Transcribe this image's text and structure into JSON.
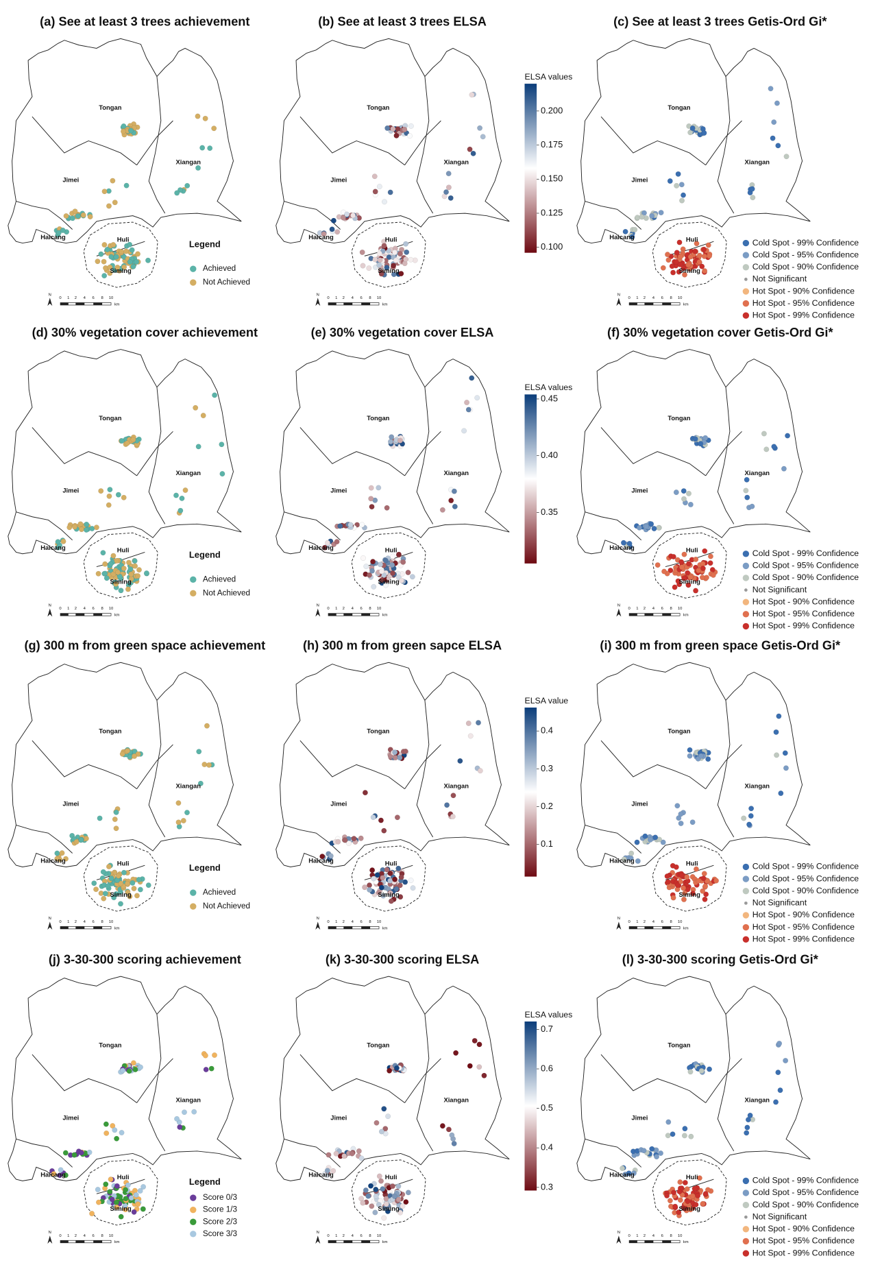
{
  "district_labels": [
    "Tongan",
    "Jimei",
    "Xiangan",
    "Haicang",
    "Huli",
    "Siming"
  ],
  "scale_bar": {
    "ticks": [
      0,
      1,
      2,
      4,
      6,
      8,
      10
    ],
    "unit": "km",
    "north": "N"
  },
  "panels": [
    {
      "title": "(a) See at least 3 trees achievement",
      "legend": {
        "title": "Legend",
        "items": [
          {
            "label": "Achieved",
            "color": "#5bb3a8"
          },
          {
            "label": "Not Achieved",
            "color": "#d4ae63"
          }
        ]
      }
    },
    {
      "title": "(b) See at least 3 trees ELSA",
      "colorbar": {
        "title": "ELSA values",
        "lim": [
          0.096,
          0.22
        ],
        "colors": [
          "#0b3d7a",
          "#ffffff",
          "#6e0a12"
        ],
        "ticks": [
          {
            "value": 0.2,
            "label": "0.200"
          },
          0.175,
          {
            "value": 0.15,
            "label": "0.150"
          },
          0.125,
          {
            "value": 0.1,
            "label": "0.100"
          }
        ]
      }
    },
    {
      "title": "(c) See at least 3 trees Getis-Ord Gi*",
      "legend": {
        "items": [
          {
            "label": "Cold Spot - 99% Confidence",
            "color": "#3b6fb0"
          },
          {
            "label": "Cold Spot - 95% Confidence",
            "color": "#7b9cc4"
          },
          {
            "label": "Cold Spot - 90% Confidence",
            "color": "#bfc9c0"
          },
          {
            "label": "Not Significant",
            "color": "#999999"
          },
          {
            "label": "Hot Spot - 90% Confidence",
            "color": "#f2b67e"
          },
          {
            "label": "Hot Spot - 95% Confidence",
            "color": "#e0704f"
          },
          {
            "label": "Hot Spot - 99% Confidence",
            "color": "#c82f2b"
          }
        ]
      }
    },
    {
      "title": "(d) 30% vegetation cover achievement",
      "legend": {
        "title": "Legend",
        "items": [
          {
            "label": "Achieved",
            "color": "#5bb3a8"
          },
          {
            "label": "Not Achieved",
            "color": "#d4ae63"
          }
        ]
      }
    },
    {
      "title": "(e) 30% vegetation cover ELSA",
      "colorbar": {
        "title": "ELSA values",
        "lim": [
          0.305,
          0.454
        ],
        "colors": [
          "#0b3d7a",
          "#ffffff",
          "#6e0a12"
        ],
        "ticks": [
          0.45,
          {
            "value": 0.4,
            "label": "0.40"
          },
          0.35
        ]
      }
    },
    {
      "title": "(f) 30% vegetation cover Getis-Ord Gi*",
      "legend": {
        "items": [
          {
            "label": "Cold Spot - 99% Confidence",
            "color": "#3b6fb0"
          },
          {
            "label": "Cold Spot - 95% Confidence",
            "color": "#7b9cc4"
          },
          {
            "label": "Cold Spot - 90% Confidence",
            "color": "#bfc9c0"
          },
          {
            "label": "Not Significant",
            "color": "#999999"
          },
          {
            "label": "Hot Spot - 90% Confidence",
            "color": "#f2b67e"
          },
          {
            "label": "Hot Spot - 95% Confidence",
            "color": "#e0704f"
          },
          {
            "label": "Hot Spot - 99% Confidence",
            "color": "#c82f2b"
          }
        ]
      }
    },
    {
      "title": "(g) 300 m from green space achievement",
      "legend": {
        "title": "Legend",
        "items": [
          {
            "label": "Achieved",
            "color": "#5bb3a8"
          },
          {
            "label": "Not Achieved",
            "color": "#d4ae63"
          }
        ]
      }
    },
    {
      "title": "(h) 300 m from green sapce ELSA",
      "colorbar": {
        "title": "ELSA value",
        "lim": [
          0.015,
          0.462
        ],
        "colors": [
          "#0b3d7a",
          "#ffffff",
          "#6e0a12"
        ],
        "ticks": [
          0.4,
          0.3,
          0.2,
          0.1
        ]
      }
    },
    {
      "title": "(i) 300 m from green space Getis-Ord Gi*",
      "legend": {
        "items": [
          {
            "label": "Cold Spot - 99% Confidence",
            "color": "#3b6fb0"
          },
          {
            "label": "Cold Spot - 95% Confidence",
            "color": "#7b9cc4"
          },
          {
            "label": "Cold Spot - 90% Confidence",
            "color": "#bfc9c0"
          },
          {
            "label": "Not Significant",
            "color": "#999999"
          },
          {
            "label": "Hot Spot - 90% Confidence",
            "color": "#f2b67e"
          },
          {
            "label": "Hot Spot - 95% Confidence",
            "color": "#e0704f"
          },
          {
            "label": "Hot Spot - 99% Confidence",
            "color": "#c82f2b"
          }
        ]
      }
    },
    {
      "title": "(j) 3-30-300 scoring achievement",
      "legend": {
        "title": "Legend",
        "items": [
          {
            "label": "Score 0/3",
            "color": "#6a3d9a"
          },
          {
            "label": "Score 1/3",
            "color": "#f0b35e"
          },
          {
            "label": "Score 2/3",
            "color": "#3a9b3a"
          },
          {
            "label": "Score 3/3",
            "color": "#a8c8e0"
          }
        ]
      }
    },
    {
      "title": "(k) 3-30-300 scoring ELSA",
      "colorbar": {
        "title": "ELSA values",
        "lim": [
          0.292,
          0.72
        ],
        "colors": [
          "#0b3d7a",
          "#ffffff",
          "#6e0a12"
        ],
        "ticks": [
          0.7,
          0.6,
          0.5,
          0.4,
          0.3
        ]
      }
    },
    {
      "title": "(l) 3-30-300 scoring Getis-Ord Gi*",
      "legend": {
        "items": [
          {
            "label": "Cold Spot - 99% Confidence",
            "color": "#3b6fb0"
          },
          {
            "label": "Cold Spot - 95% Confidence",
            "color": "#7b9cc4"
          },
          {
            "label": "Cold Spot - 90% Confidence",
            "color": "#bfc9c0"
          },
          {
            "label": "Not Significant",
            "color": "#999999"
          },
          {
            "label": "Hot Spot - 90% Confidence",
            "color": "#f2b67e"
          },
          {
            "label": "Hot Spot - 95% Confidence",
            "color": "#e0704f"
          },
          {
            "label": "Hot Spot - 99% Confidence",
            "color": "#c82f2b"
          }
        ]
      }
    }
  ]
}
